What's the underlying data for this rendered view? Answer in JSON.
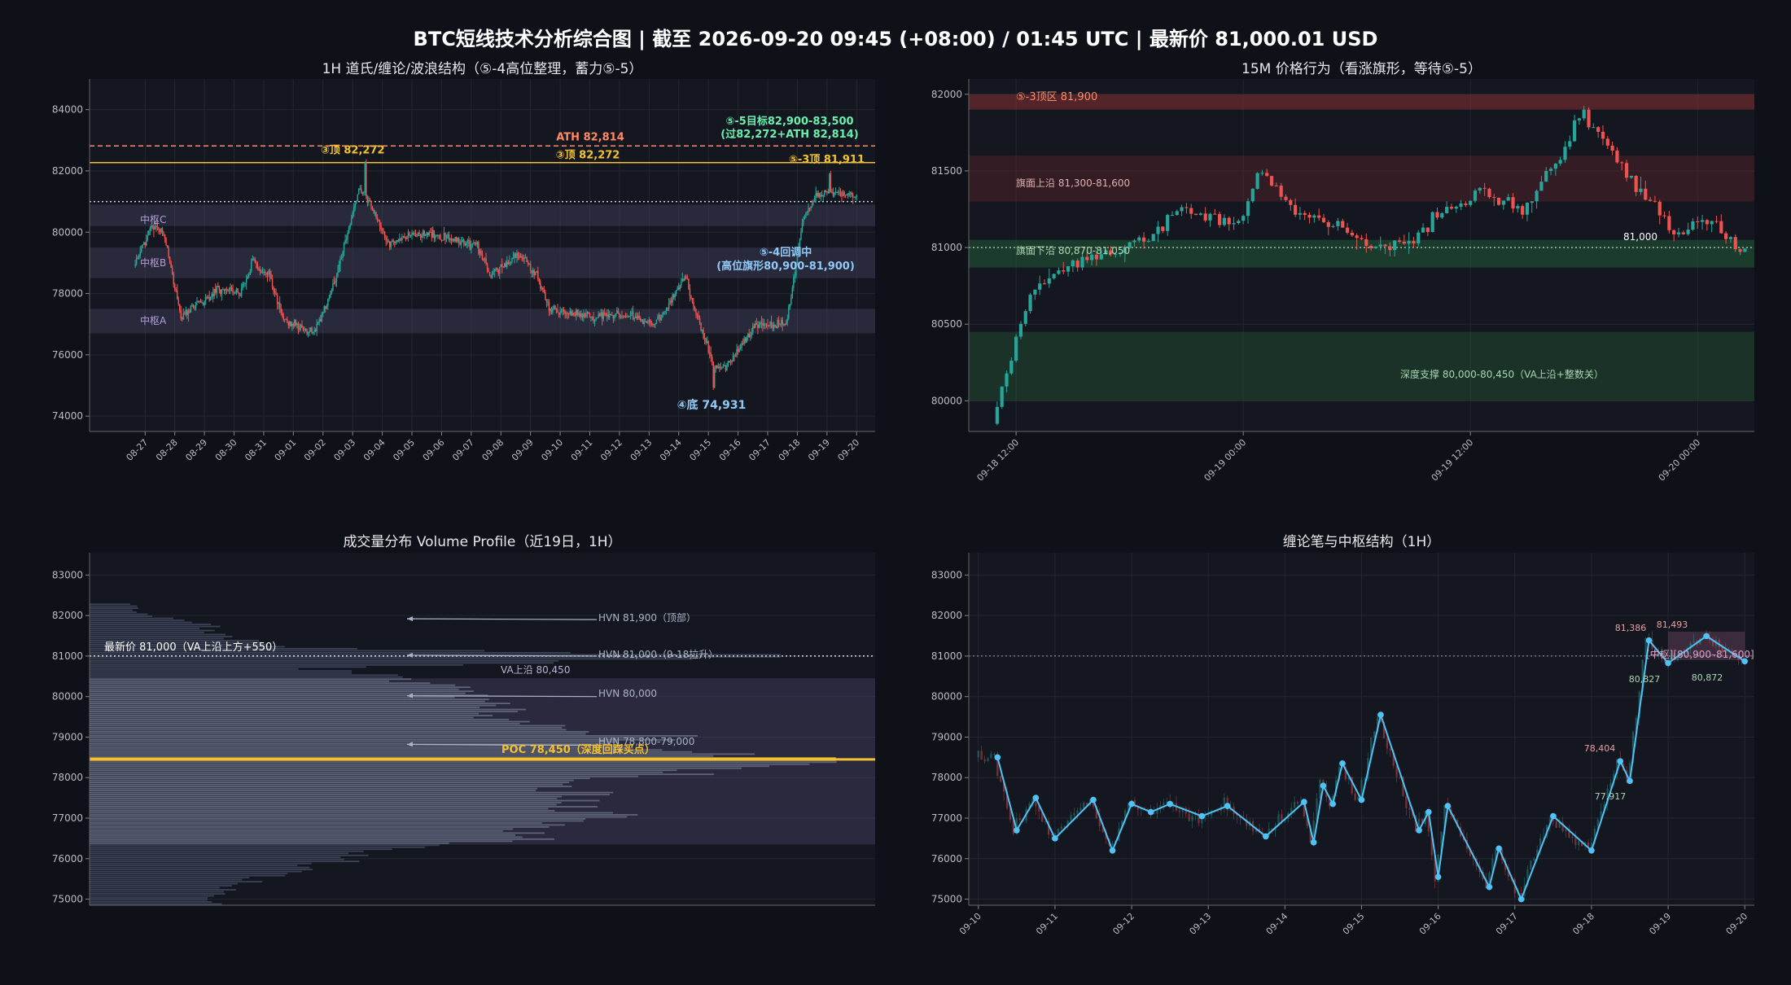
{
  "title": "BTC短线技术分析综合图  |  截至 2026-09-20 09:45 (+08:00) / 01:45 UTC  |  最新价 81,000.01 USD",
  "colors": {
    "up": "#26a69a",
    "down": "#ef5350",
    "gold": "#f2c230",
    "blue": "#90caf9",
    "green": "#69f0ae",
    "salmon": "#ff8a65",
    "purple": "#b39ddb",
    "line": "#4fc3f7"
  },
  "panels": {
    "p1": {
      "title": "1H 道氏/缠论/波浪结构（⑤-4高位整理，蓄力⑤-5）",
      "y_ticks": [
        "74000",
        "76000",
        "78000",
        "80000",
        "82000",
        "84000"
      ],
      "x_ticks": [
        "08-27",
        "08-28",
        "08-29",
        "08-30",
        "08-31",
        "09-01",
        "09-02",
        "09-03",
        "09-04",
        "09-05",
        "09-06",
        "09-07",
        "09-08",
        "09-09",
        "09-10",
        "09-11",
        "09-12",
        "09-13",
        "09-14",
        "09-15",
        "09-16",
        "09-17",
        "09-18",
        "09-19",
        "09-20"
      ],
      "annotations": {
        "top3_left": "③顶 82,272",
        "ath": "ATH 82,814",
        "top3_mid": "③顶 82,272",
        "target_1": "⑤-5目标82,900-83,500",
        "target_2": "(过82,272+ATH 82,814)",
        "top53": "⑤-3顶 81,911",
        "zhongshu_c": "中枢C",
        "zhongshu_b": "中枢B",
        "zhongshu_a": "中枢A",
        "pullback_1": "⑤-4回调中",
        "pullback_2": "(高位旗形80,900-81,900)",
        "bottom4": "④底 74,931"
      }
    },
    "p2": {
      "title": "15M 价格行为（看涨旗形，等待⑤-5）",
      "y_ticks": [
        "80000",
        "80500",
        "81000",
        "81500",
        "82000"
      ],
      "x_ticks": [
        "09-18 12:00",
        "09-19 00:00",
        "09-19 12:00",
        "09-20 00:00"
      ],
      "annotations": {
        "top_zone": "⑤-3顶区 81,900",
        "flag_upper": "旗面上沿 81,300-81,600",
        "flag_lower": "旗面下沿 80,870-81,050",
        "deep_support": "深度支撑 80,000-80,450（VA上沿+整数关）",
        "price_label": "81,000"
      }
    },
    "p3": {
      "title": "成交量分布 Volume Profile（近19日，1H）",
      "y_ticks": [
        "75000",
        "76000",
        "77000",
        "78000",
        "79000",
        "80000",
        "81000",
        "82000",
        "83000"
      ],
      "annotations": {
        "last_price": "最新价 81,000（VA上沿上方+550）",
        "hvn1": "HVN 81,900（顶部）",
        "hvn2": "HVN 81,000（9-18拉升）",
        "va_upper": "VA上沿 80,450",
        "hvn3": "HVN 80,000",
        "hvn4": "HVN 78,800-79,000",
        "poc": "POC 78,450（深度回踩买点）"
      }
    },
    "p4": {
      "title": "缠论笔与中枢结构（1H）",
      "y_ticks": [
        "75000",
        "76000",
        "77000",
        "78000",
        "79000",
        "80000",
        "81000",
        "82000",
        "83000"
      ],
      "x_ticks": [
        "09-10",
        "09-11",
        "09-12",
        "09-13",
        "09-14",
        "09-15",
        "09-16",
        "09-17",
        "09-18",
        "09-19",
        "09-20"
      ],
      "annotations": {
        "zs_label": "[中枢][80,900–81,600]",
        "p1": "81,386",
        "p2": "81,493",
        "p3": "80,827",
        "p4": "80,872",
        "p5": "78,404",
        "p6": "77,917"
      }
    }
  },
  "chart_data": [
    {
      "type": "candlestick",
      "title": "1H 道氏/缠论/波浪结构（⑤-4高位整理，蓄力⑤-5）",
      "timeframe": "1H",
      "ylim": [
        73500,
        85000
      ],
      "x_range": [
        "08-26",
        "09-20"
      ],
      "hlines": [
        {
          "label": "ATH",
          "value": 82814,
          "style": "dashed",
          "color": "#ff8a65"
        },
        {
          "label": "③顶",
          "value": 82272,
          "style": "solid",
          "color": "#f2c230"
        },
        {
          "label": "最新价",
          "value": 81000,
          "style": "dotted",
          "color": "#cccccc"
        }
      ],
      "zones": [
        {
          "label": "中枢A",
          "low": 76700,
          "high": 77500
        },
        {
          "label": "中枢B",
          "low": 78500,
          "high": 79500
        },
        {
          "label": "中枢C",
          "low": 80200,
          "high": 80900
        }
      ],
      "daily_path": [
        {
          "x": "08-27",
          "price": 78900
        },
        {
          "x": "08-27",
          "price": 80200
        },
        {
          "x": "08-28",
          "price": 80000
        },
        {
          "x": "08-28",
          "price": 77200
        },
        {
          "x": "08-29",
          "price": 77600
        },
        {
          "x": "08-30",
          "price": 78200
        },
        {
          "x": "08-30",
          "price": 78000
        },
        {
          "x": "08-31",
          "price": 79000
        },
        {
          "x": "08-31",
          "price": 78600
        },
        {
          "x": "09-01",
          "price": 77200
        },
        {
          "x": "09-02",
          "price": 76700
        },
        {
          "x": "09-02",
          "price": 77800
        },
        {
          "x": "09-03",
          "price": 79200
        },
        {
          "x": "09-03",
          "price": 81400
        },
        {
          "x": "09-04",
          "price": 80900
        },
        {
          "x": "09-04",
          "price": 79600
        },
        {
          "x": "09-05",
          "price": 79800
        },
        {
          "x": "09-06",
          "price": 80000
        },
        {
          "x": "09-07",
          "price": 79700
        },
        {
          "x": "09-07",
          "price": 79600
        },
        {
          "x": "09-08",
          "price": 78600
        },
        {
          "x": "09-09",
          "price": 79300
        },
        {
          "x": "09-09",
          "price": 78600
        },
        {
          "x": "09-10",
          "price": 77500
        },
        {
          "x": "09-11",
          "price": 77300
        },
        {
          "x": "09-11",
          "price": 77200
        },
        {
          "x": "09-12",
          "price": 77300
        },
        {
          "x": "09-13",
          "price": 77200
        },
        {
          "x": "09-13",
          "price": 77000
        },
        {
          "x": "09-14",
          "price": 77600
        },
        {
          "x": "09-14",
          "price": 78600
        },
        {
          "x": "09-15",
          "price": 77200
        },
        {
          "x": "09-15",
          "price": 75600
        },
        {
          "x": "09-16",
          "price": 75600
        },
        {
          "x": "09-16",
          "price": 76500
        },
        {
          "x": "09-17",
          "price": 77000
        },
        {
          "x": "09-18",
          "price": 77000
        },
        {
          "x": "09-18",
          "price": 80500
        },
        {
          "x": "09-19",
          "price": 81200
        },
        {
          "x": "09-19",
          "price": 81300
        },
        {
          "x": "09-20",
          "price": 81300
        },
        {
          "x": "09-20",
          "price": 81000
        }
      ],
      "key_points": [
        {
          "label": "③顶",
          "x": "09-03",
          "value": 82272
        },
        {
          "label": "④底",
          "x": "09-15",
          "value": 74931
        },
        {
          "label": "⑤-3顶",
          "x": "09-19",
          "value": 81911
        }
      ]
    },
    {
      "type": "candlestick",
      "title": "15M 价格行为（看涨旗形，等待⑤-5）",
      "timeframe": "15M",
      "ylim": [
        79800,
        82100
      ],
      "x_range": [
        "09-18 09:00",
        "09-20 03:00"
      ],
      "zones": [
        {
          "label": "⑤-3顶区",
          "low": 81900,
          "high": 82000
        },
        {
          "label": "旗面上沿",
          "low": 81300,
          "high": 81600
        },
        {
          "label": "旗面下沿",
          "low": 80870,
          "high": 81050
        },
        {
          "label": "深度支撑",
          "low": 80000,
          "high": 80450
        }
      ],
      "hlines": [
        {
          "label": "81,000",
          "value": 81000,
          "style": "dotted"
        }
      ],
      "price_path": [
        {
          "x": "09-18 11:00",
          "price": 79850
        },
        {
          "x": "09-18 12:00",
          "price": 80300
        },
        {
          "x": "09-18 13:00",
          "price": 80700
        },
        {
          "x": "09-18 15:00",
          "price": 80900
        },
        {
          "x": "09-18 17:00",
          "price": 80950
        },
        {
          "x": "09-18 19:00",
          "price": 81050
        },
        {
          "x": "09-18 21:00",
          "price": 81250
        },
        {
          "x": "09-19 00:00",
          "price": 81150
        },
        {
          "x": "09-19 01:00",
          "price": 81500
        },
        {
          "x": "09-19 03:00",
          "price": 81250
        },
        {
          "x": "09-19 05:00",
          "price": 81150
        },
        {
          "x": "09-19 07:00",
          "price": 81000
        },
        {
          "x": "09-19 09:00",
          "price": 81050
        },
        {
          "x": "09-19 11:00",
          "price": 81250
        },
        {
          "x": "09-19 13:00",
          "price": 81350
        },
        {
          "x": "09-19 15:00",
          "price": 81250
        },
        {
          "x": "09-19 17:00",
          "price": 81600
        },
        {
          "x": "09-19 18:00",
          "price": 81850
        },
        {
          "x": "09-19 19:00",
          "price": 81750
        },
        {
          "x": "09-19 21:00",
          "price": 81400
        },
        {
          "x": "09-19 22:00",
          "price": 81300
        },
        {
          "x": "09-19 23:00",
          "price": 81100
        },
        {
          "x": "09-20 00:00",
          "price": 81150
        },
        {
          "x": "09-20 01:00",
          "price": 81200
        },
        {
          "x": "09-20 02:00",
          "price": 81050
        },
        {
          "x": "09-20 02:30",
          "price": 81000
        }
      ]
    },
    {
      "type": "volume_profile",
      "title": "成交量分布 Volume Profile（近19日，1H）",
      "ylim": [
        74850,
        83550
      ],
      "bin_size": 50,
      "value_area": {
        "low": 76350,
        "high": 80450
      },
      "poc": 78450,
      "hlines": [
        {
          "label": "最新价 81,000",
          "value": 81000,
          "style": "dotted"
        }
      ],
      "profile_nodes": [
        {
          "price": 74900,
          "volume": 0.16
        },
        {
          "price": 75300,
          "volume": 0.18
        },
        {
          "price": 75700,
          "volume": 0.26
        },
        {
          "price": 76000,
          "volume": 0.33
        },
        {
          "price": 76250,
          "volume": 0.38
        },
        {
          "price": 76500,
          "volume": 0.56
        },
        {
          "price": 76800,
          "volume": 0.6
        },
        {
          "price": 77000,
          "volume": 0.66
        },
        {
          "price": 77300,
          "volume": 0.62
        },
        {
          "price": 77600,
          "volume": 0.63
        },
        {
          "price": 77800,
          "volume": 0.58
        },
        {
          "price": 78100,
          "volume": 0.76
        },
        {
          "price": 78300,
          "volume": 0.85
        },
        {
          "price": 78450,
          "volume": 0.95
        },
        {
          "price": 78600,
          "volume": 0.8
        },
        {
          "price": 78800,
          "volume": 0.69
        },
        {
          "price": 79000,
          "volume": 0.73
        },
        {
          "price": 79200,
          "volume": 0.62
        },
        {
          "price": 79500,
          "volume": 0.52
        },
        {
          "price": 79800,
          "volume": 0.5
        },
        {
          "price": 80000,
          "volume": 0.48
        },
        {
          "price": 80250,
          "volume": 0.45
        },
        {
          "price": 80450,
          "volume": 0.4
        },
        {
          "price": 80700,
          "volume": 0.28
        },
        {
          "price": 81000,
          "volume": 0.9
        },
        {
          "price": 81200,
          "volume": 0.26
        },
        {
          "price": 81500,
          "volume": 0.16
        },
        {
          "price": 81800,
          "volume": 0.15
        },
        {
          "price": 82050,
          "volume": 0.06
        },
        {
          "price": 82250,
          "volume": 0.055
        }
      ]
    },
    {
      "type": "line",
      "title": "缠论笔与中枢结构（1H）",
      "ylim": [
        74850,
        83550
      ],
      "x_range": [
        "09-09 21:00",
        "09-20 03:00"
      ],
      "zone": {
        "label": "中枢",
        "low": 80900,
        "high": 81600,
        "x_start": "09-19 00:00",
        "x_end": "09-20 00:00"
      },
      "hlines": [
        {
          "value": 81000,
          "style": "dotted"
        }
      ],
      "pivots": [
        {
          "x": "09-10 06:00",
          "price": 78500
        },
        {
          "x": "09-10 12:00",
          "price": 76700
        },
        {
          "x": "09-10 18:00",
          "price": 77500
        },
        {
          "x": "09-11 00:00",
          "price": 76500
        },
        {
          "x": "09-11 12:00",
          "price": 77450
        },
        {
          "x": "09-11 18:00",
          "price": 76200
        },
        {
          "x": "09-12 00:00",
          "price": 77350
        },
        {
          "x": "09-12 06:00",
          "price": 77150
        },
        {
          "x": "09-12 12:00",
          "price": 77350
        },
        {
          "x": "09-12 22:00",
          "price": 77050
        },
        {
          "x": "09-13 06:00",
          "price": 77300
        },
        {
          "x": "09-13 18:00",
          "price": 76550
        },
        {
          "x": "09-14 06:00",
          "price": 77400
        },
        {
          "x": "09-14 09:00",
          "price": 76400
        },
        {
          "x": "09-14 12:00",
          "price": 77800
        },
        {
          "x": "09-14 15:00",
          "price": 77350
        },
        {
          "x": "09-14 18:00",
          "price": 78350
        },
        {
          "x": "09-15 00:00",
          "price": 77450
        },
        {
          "x": "09-15 06:00",
          "price": 79550
        },
        {
          "x": "09-15 18:00",
          "price": 76700
        },
        {
          "x": "09-15 21:00",
          "price": 77150
        },
        {
          "x": "09-16 00:00",
          "price": 75550
        },
        {
          "x": "09-16 03:00",
          "price": 77300
        },
        {
          "x": "09-16 16:00",
          "price": 75300
        },
        {
          "x": "09-16 19:00",
          "price": 76250
        },
        {
          "x": "09-17 02:00",
          "price": 75000
        },
        {
          "x": "09-17 12:00",
          "price": 77050
        },
        {
          "x": "09-18 00:00",
          "price": 76200
        },
        {
          "x": "09-18 09:00",
          "price": 78404
        },
        {
          "x": "09-18 12:00",
          "price": 77917
        },
        {
          "x": "09-18 18:00",
          "price": 81386
        },
        {
          "x": "09-19 00:00",
          "price": 80827
        },
        {
          "x": "09-19 12:00",
          "price": 81493
        },
        {
          "x": "09-20 00:00",
          "price": 80872
        }
      ]
    }
  ]
}
